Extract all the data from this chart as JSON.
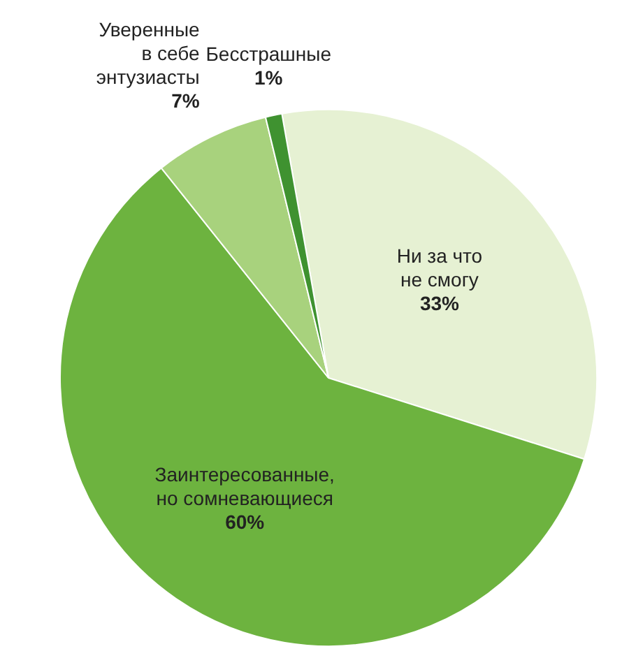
{
  "chart_data": {
    "type": "pie",
    "categories": [
      "Ни за что\nне смогу",
      "Заинтересованные,\nно сомневающиеся",
      "Уверенные\nв себе\nэнтузиасты",
      "Бесстрашные"
    ],
    "values": [
      33,
      60,
      7,
      1
    ],
    "colors": [
      "#e6f1d3",
      "#6db33f",
      "#a8d27d",
      "#3f9230"
    ],
    "value_labels": [
      "33%",
      "60%",
      "7%",
      "1%"
    ],
    "legend": false
  }
}
